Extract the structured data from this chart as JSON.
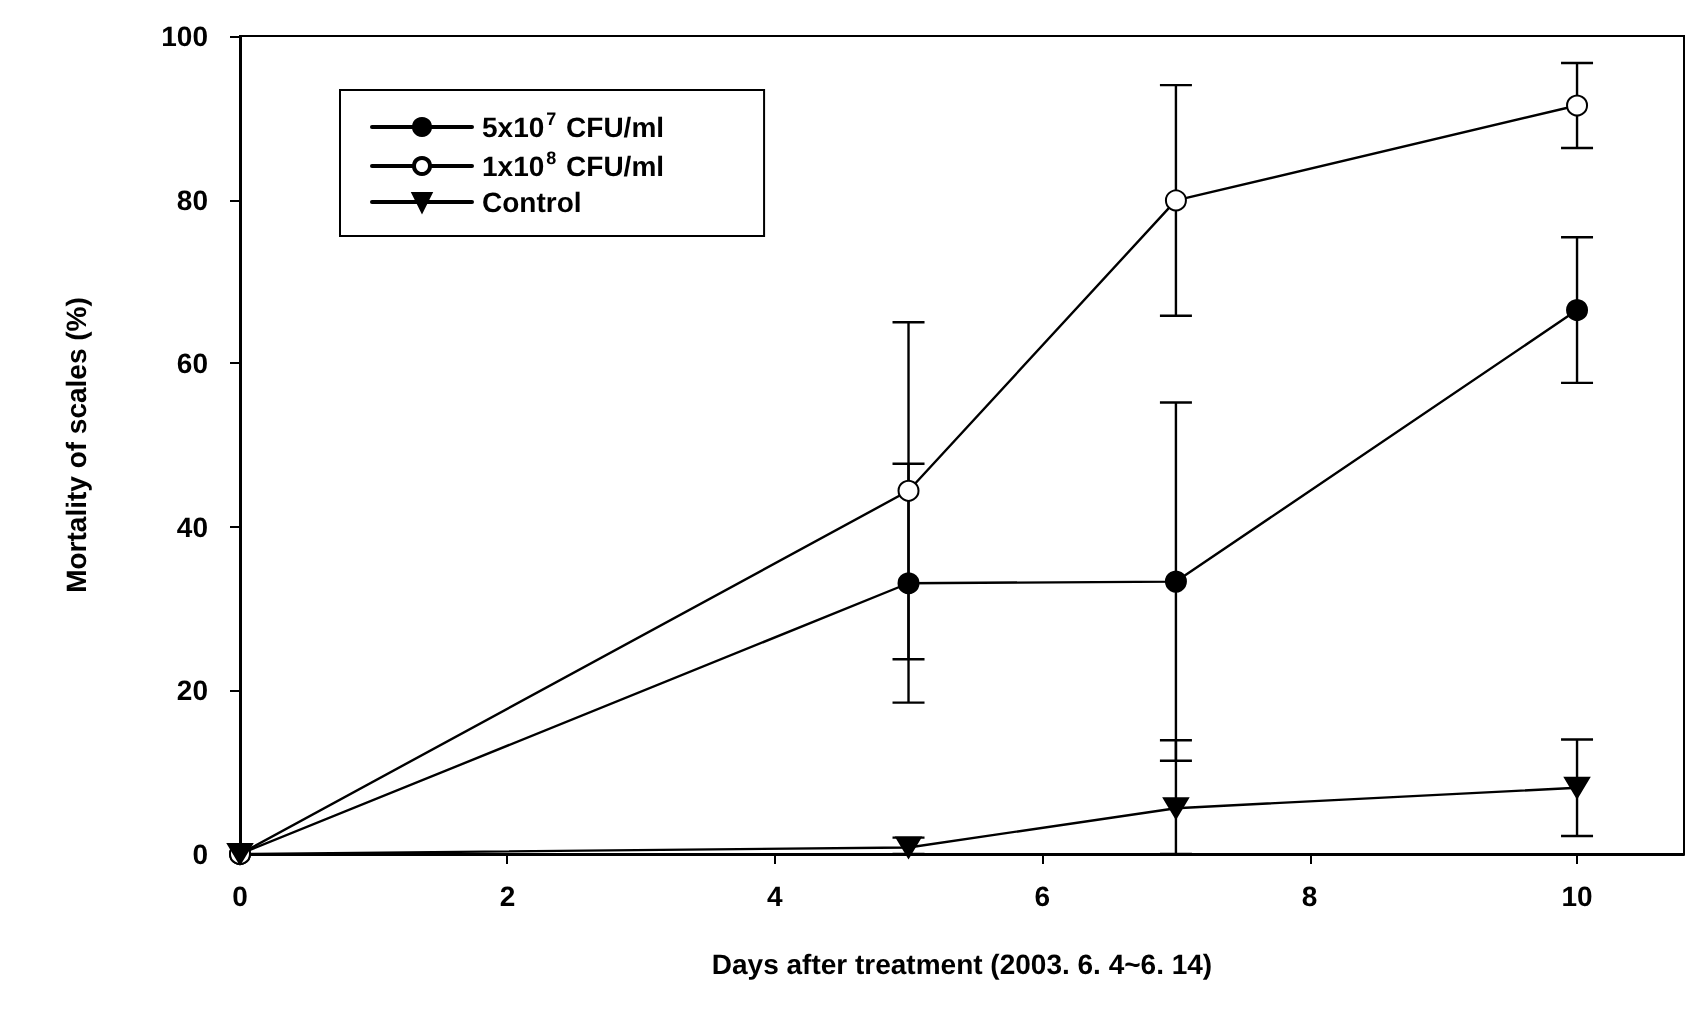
{
  "chart_data": {
    "type": "line",
    "xlabel": "Days after treatment (2003. 6. 4~6. 14)",
    "ylabel": "Mortality of scales (%)",
    "x": [
      0,
      5,
      7,
      10
    ],
    "series": [
      {
        "name": "5x10$^{7}$ CFU/ml",
        "color": "#000000",
        "marker": "circle",
        "values": [
          0,
          33.1,
          33.3,
          66.5
        ],
        "errors": [
          null,
          14.6,
          21.9,
          8.9
        ]
      },
      {
        "name": "1x10$^{8}$ CFU/ml",
        "color": "#000000",
        "marker": "circle",
        "values": [
          0,
          44.4,
          79.9,
          91.5
        ],
        "errors": [
          null,
          20.6,
          14.1,
          5.2
        ]
      },
      {
        "name": "Control",
        "color": "#000000",
        "marker": "triangle",
        "values": [
          0,
          0.8,
          5.6,
          8.1
        ],
        "errors": [
          null,
          [
            0,
            2.0
          ],
          [
            0,
            13.9
          ],
          5.9
        ]
      }
    ],
    "xlim": [
      0,
      10.8
    ],
    "xticks": [
      0,
      2,
      4,
      6,
      8,
      10
    ],
    "ylim": [
      0,
      100
    ],
    "yticks": [
      0,
      20,
      40,
      60,
      80,
      100
    ],
    "grid": false,
    "legend": "top left",
    "line_style": "solid"
  }
}
